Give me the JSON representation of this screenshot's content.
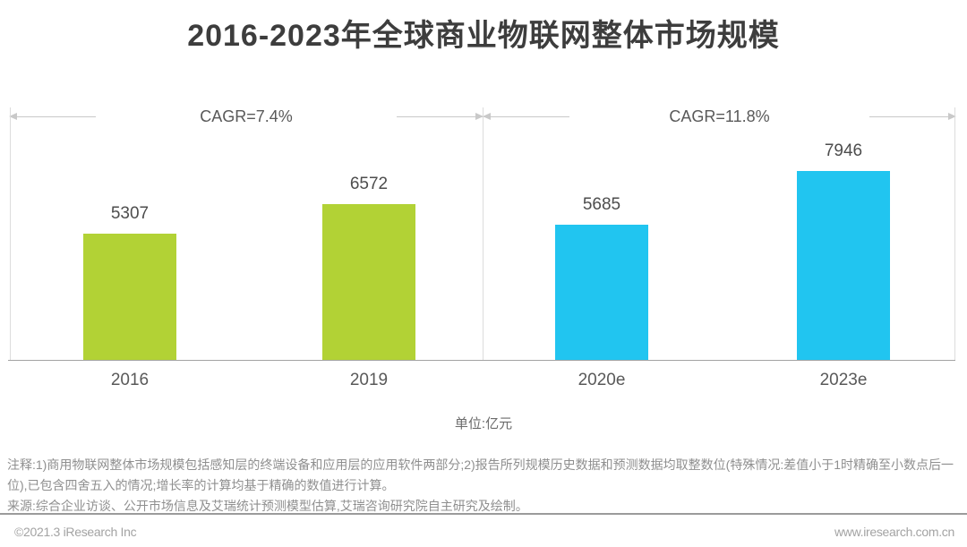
{
  "title": "2016-2023年全球商业物联网整体市场规模",
  "chart_data": {
    "type": "bar",
    "categories": [
      "2016",
      "2019",
      "2020e",
      "2023e"
    ],
    "values": [
      5307,
      6572,
      5685,
      7946
    ],
    "bar_colors": [
      "#b2d235",
      "#b2d235",
      "#21c5f0",
      "#21c5f0"
    ],
    "value_labels": [
      "5307",
      "6572",
      "5685",
      "7946"
    ],
    "unit_label": "单位:亿元",
    "ylim": [
      0,
      8500
    ],
    "grid": false,
    "legend": "none",
    "annotations": [
      {
        "label": "CAGR=7.4%",
        "span_categories": [
          "2016",
          "2019"
        ]
      },
      {
        "label": "CAGR=11.8%",
        "span_categories": [
          "2020e",
          "2023e"
        ]
      }
    ]
  },
  "notes": {
    "note_line": "注释:1)商用物联网整体市场规模包括感知层的终端设备和应用层的应用软件两部分;2)报告所列规模历史数据和预测数据均取整数位(特殊情况:差值小于1时精确至小数点后一位),已包含四舍五入的情况;增长率的计算均基于精确的数值进行计算。",
    "source_line": "来源:综合企业访谈、公开市场信息及艾瑞统计预测模型估算,艾瑞咨询研究院自主研究及绘制。"
  },
  "footer": {
    "copyright": "©2021.3 iResearch Inc",
    "website": "www.iresearch.com.cn"
  },
  "colors": {
    "historical_bar": "#b2d235",
    "estimate_bar": "#21c5f0",
    "title_text": "#3d3d3d",
    "axis_line": "#a3a3a3",
    "dimension_line": "#c9c9c9",
    "note_text": "#8f8f8f"
  }
}
